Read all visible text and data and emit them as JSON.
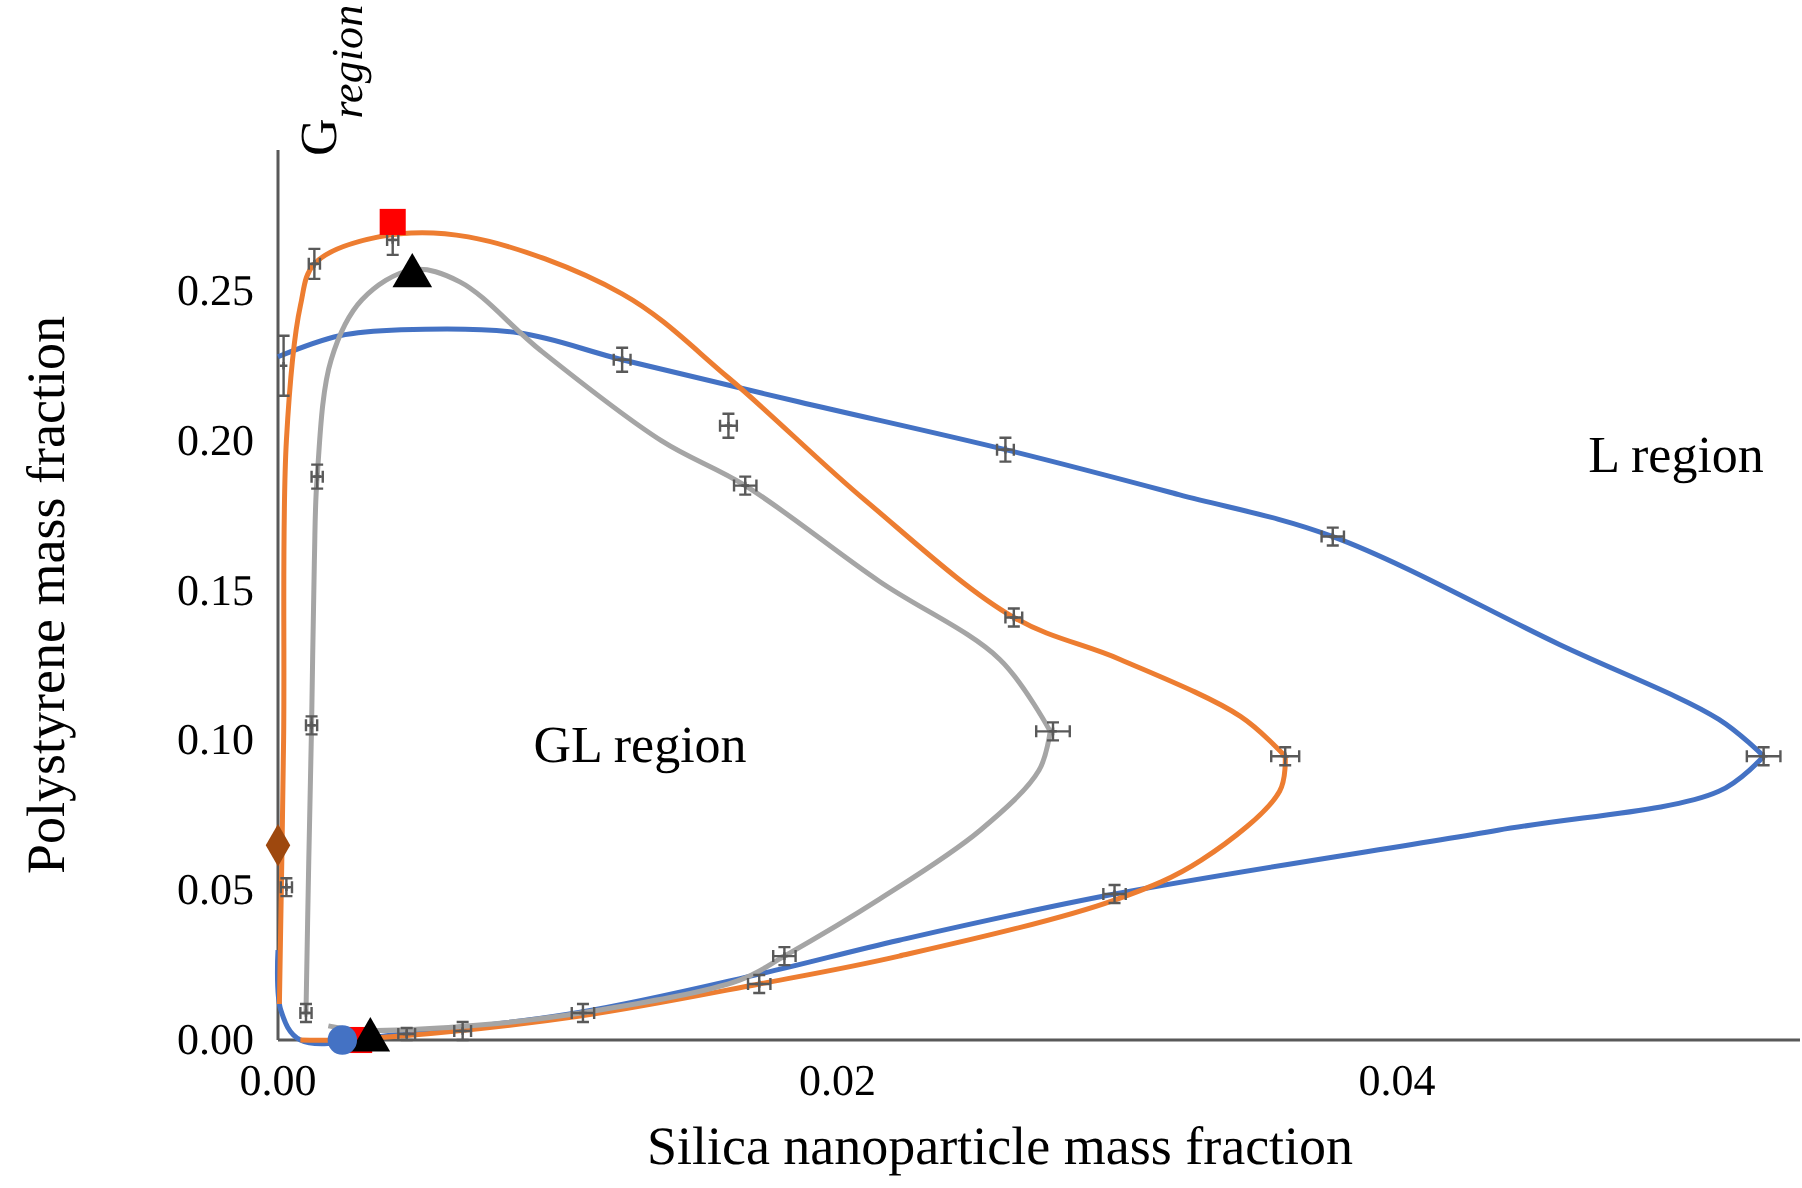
{
  "chart_data": {
    "type": "line",
    "xlabel": "Silica nanoparticle mass fraction",
    "ylabel": "Polystyrene mass fraction",
    "xlim": [
      0,
      0.0544
    ],
    "ylim": [
      0,
      0.297
    ],
    "xticks": [
      {
        "value": 0,
        "label": "0.00"
      },
      0.02,
      0.04
    ],
    "yticks": [
      {
        "value": 0,
        "label": "0.00"
      },
      0.05,
      {
        "value": 0.1,
        "label": "0.10"
      },
      0.15,
      {
        "value": 0.2,
        "label": "0.20"
      },
      0.25
    ],
    "grid": false,
    "line_style": "solid",
    "annotations": [
      "G$_{region}$",
      "GL region",
      "L region"
    ],
    "series": [
      {
        "color": "#4472c4",
        "x": [
          0,
          0.0022,
          0.0044,
          0.0086,
          0.0123,
          0.0186,
          0.026,
          0.0322,
          0.0377,
          0.0458,
          0.0515,
          0.0531
        ],
        "values": [
          0.228,
          0.235,
          0.237,
          0.236,
          0.227,
          0.213,
          0.197,
          0.182,
          0.168,
          0.132,
          0.107,
          0.0947
        ]
      },
      {
        "color": "#4472c4",
        "x": [
          0.0531,
          0.0515,
          0.0436,
          0.0299,
          0.0222,
          0.0172,
          0.0108,
          0.0044,
          0.0008,
          0.0001,
          0
        ],
        "values": [
          0.0947,
          0.083,
          0.07,
          0.0487,
          0.0333,
          0.022,
          0.0093,
          0.002,
          0,
          0.01,
          0.03
        ]
      },
      {
        "color": "#ed7d31",
        "x": [
          5e-05,
          0.0002,
          0.0003,
          0.0008,
          0.0013,
          0.0036,
          0.0068,
          0.0123,
          0.0161,
          0.021,
          0.0263,
          0.0301,
          0.0344,
          0.036
        ],
        "values": [
          0.012,
          0.1,
          0.2,
          0.245,
          0.259,
          0.268,
          0.268,
          0.249,
          0.221,
          0.18,
          0.141,
          0.127,
          0.108,
          0.0947
        ]
      },
      {
        "color": "#ed7d31",
        "x": [
          0.036,
          0.0358,
          0.033,
          0.0299,
          0.0222,
          0.0172,
          0.0108,
          0.0044,
          0.002,
          0.0008
        ],
        "values": [
          0.0947,
          0.083,
          0.06,
          0.0467,
          0.028,
          0.0187,
          0.008,
          0.0013,
          0,
          0
        ]
      },
      {
        "color": "#a5a5a5",
        "x": [
          0.001,
          0.0011,
          0.0012,
          0.0013,
          0.0014,
          0.0019,
          0.003,
          0.0048,
          0.0065,
          0.0094,
          0.0137,
          0.0167,
          0.0215,
          0.0258,
          0.0276
        ],
        "values": [
          0.009,
          0.06,
          0.105,
          0.16,
          0.188,
          0.227,
          0.247,
          0.257,
          0.253,
          0.23,
          0.2,
          0.185,
          0.153,
          0.127,
          0.103
        ]
      },
      {
        "color": "#a5a5a5",
        "x": [
          0.0276,
          0.0272,
          0.0251,
          0.0215,
          0.0181,
          0.0165,
          0.0115,
          0.0072,
          0.0029,
          0.0018
        ],
        "values": [
          0.103,
          0.09,
          0.07,
          0.047,
          0.028,
          0.02,
          0.01,
          0.005,
          0.0033,
          0.0047
        ]
      },
      {
        "type": "scatter",
        "color": "#595959",
        "marker": "cross",
        "x": [
          0.0123,
          0.026,
          0.0377,
          0.0531,
          0.0299,
          0.0013,
          0.0041,
          0.0161,
          0.0263,
          0.036,
          0.0172,
          0.0012,
          0.0014,
          0.0167,
          0.0277,
          0.0181,
          0.0109,
          0.0066,
          0.0046,
          0.001,
          0.0003,
          0.0002
        ],
        "values": [
          0.227,
          0.197,
          0.168,
          0.0947,
          0.0487,
          0.259,
          0.267,
          0.205,
          0.141,
          0.0947,
          0.0187,
          0.105,
          0.188,
          0.185,
          0.103,
          0.028,
          0.009,
          0.003,
          0.002,
          0.009,
          0.051,
          0.225
        ],
        "errors": [
          0.004,
          0.004,
          0.003,
          0.003,
          0.003,
          0.005,
          0.005,
          0.004,
          0.003,
          0.003,
          0.003,
          0.003,
          0.004,
          0.003,
          0.003,
          0.003,
          0.003,
          0.003,
          0.002,
          0.003,
          0.003,
          0.01
        ],
        "xerrors": [
          0.0003,
          0.0003,
          0.0004,
          0.0006,
          0.0004,
          0.0002,
          0.0002,
          0.0003,
          0.0003,
          0.0005,
          0.0004,
          0.0002,
          0.0002,
          0.0004,
          0.0006,
          0.0004,
          0.0004,
          0.0003,
          0.0003,
          0.0002,
          0.0002,
          null
        ]
      },
      {
        "type": "scatter",
        "color": "#ff0000",
        "marker": "square",
        "x": [
          0.0041,
          0.0029
        ],
        "values": [
          0.273,
          0
        ]
      },
      {
        "type": "scatter",
        "color": "#000000",
        "marker": "triangle",
        "x": [
          0.0048,
          0.0033
        ],
        "values": [
          0.255,
          0
        ]
      },
      {
        "type": "scatter",
        "color": "#9e480e",
        "marker": "diamond",
        "x": [
          0
        ],
        "values": [
          0.065
        ]
      },
      {
        "type": "scatter",
        "color": "#4472c4",
        "marker": "circle",
        "x": [
          0.0023
        ],
        "values": [
          0
        ]
      }
    ]
  }
}
